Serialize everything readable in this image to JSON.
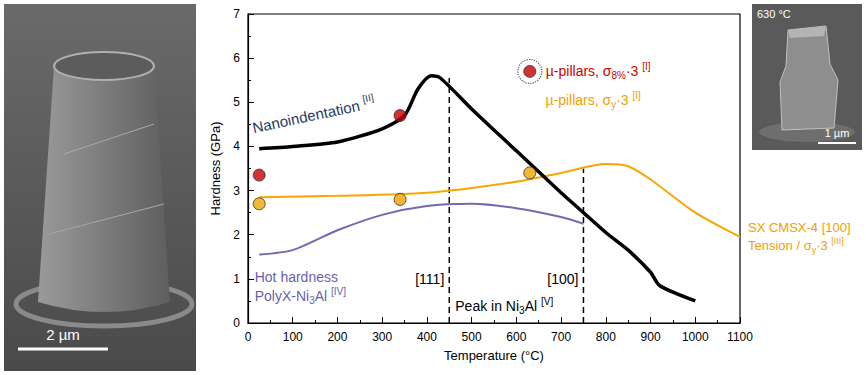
{
  "chart_data": {
    "type": "line",
    "x_label": "Temperature (°C)",
    "y_label": "Hardness (GPa)",
    "xlim": [
      0,
      1100
    ],
    "xticks": [
      0,
      100,
      200,
      300,
      400,
      500,
      600,
      700,
      800,
      900,
      1000,
      1100
    ],
    "ylim": [
      0,
      7
    ],
    "yticks": [
      0,
      1,
      2,
      3,
      4,
      5,
      6,
      7
    ],
    "grid": false,
    "legend": "none",
    "series": [
      {
        "type": "line",
        "line_style": "solid",
        "color": "#000000",
        "label": [
          [
            {
              "text": "Nanoindentation "
            },
            {
              "text": "[II]",
              "style": "sup"
            }
          ]
        ],
        "label_color": "#1f3a5f",
        "x": [
          25,
          100,
          200,
          300,
          350,
          380,
          410,
          430,
          500,
          600,
          700,
          750,
          800,
          850,
          900,
          920,
          1000
        ],
        "values": [
          3.95,
          4.0,
          4.1,
          4.4,
          4.7,
          5.3,
          5.6,
          5.55,
          4.85,
          3.9,
          2.95,
          2.5,
          2.05,
          1.65,
          1.15,
          0.85,
          0.5
        ]
      },
      {
        "type": "scatter",
        "marker": "circle",
        "color": "#c40000",
        "label": [
          [
            {
              "text": "µ-pillars, σ"
            },
            {
              "text": "8%",
              "style": "sub"
            },
            {
              "text": "·3 "
            },
            {
              "text": "[I]",
              "style": "sup"
            }
          ]
        ],
        "label_color": "#d00000",
        "x": [
          25,
          340,
          630
        ],
        "values": [
          3.35,
          4.7,
          5.7
        ]
      },
      {
        "type": "scatter",
        "marker": "circle",
        "color": "#f0a500",
        "label": [
          [
            {
              "text": "µ-pillars, σ"
            },
            {
              "text": "y",
              "style": "sub"
            },
            {
              "text": "·3 "
            },
            {
              "text": "[I]",
              "style": "sup"
            }
          ]
        ],
        "label_color": "#f0a000",
        "x": [
          25,
          340,
          630
        ],
        "values": [
          2.7,
          2.8,
          3.4
        ]
      },
      {
        "type": "line",
        "line_style": "solid",
        "color": "#f5a800",
        "label": [
          [
            {
              "text": "SX CMSX-4 [100]"
            }
          ],
          [
            {
              "text": "Tension / σ"
            },
            {
              "text": "y",
              "style": "sub"
            },
            {
              "text": "·3 "
            },
            {
              "text": "[III]",
              "style": "sup"
            }
          ]
        ],
        "label_color": "#f0a000",
        "x": [
          25,
          200,
          400,
          600,
          700,
          800,
          850,
          900,
          1000,
          1100
        ],
        "values": [
          2.85,
          2.88,
          2.95,
          3.2,
          3.4,
          3.6,
          3.55,
          3.25,
          2.5,
          1.95
        ]
      },
      {
        "type": "line",
        "line_style": "solid",
        "color": "#7468b0",
        "label": [
          [
            {
              "text": "Hot hardness"
            }
          ],
          [
            {
              "text": "PolyX-Ni"
            },
            {
              "text": "3",
              "style": "sub"
            },
            {
              "text": "Al "
            },
            {
              "text": "[IV]",
              "style": "sup"
            }
          ]
        ],
        "label_color": "#6a5fae",
        "x": [
          25,
          100,
          200,
          300,
          400,
          500,
          600,
          700,
          750
        ],
        "values": [
          1.55,
          1.65,
          2.1,
          2.45,
          2.65,
          2.7,
          2.6,
          2.4,
          2.25
        ]
      }
    ],
    "vlines": [
      {
        "x": 450,
        "ymax": 5.55,
        "label": "[111]"
      },
      {
        "x": 750,
        "ymax": 3.5,
        "label": "[100]"
      }
    ],
    "annotation": [
      {
        "text": "Peak in Ni"
      },
      {
        "text": "3",
        "style": "sub"
      },
      {
        "text": "Al "
      },
      {
        "text": "[V]",
        "style": "sup"
      }
    ]
  },
  "images": [
    {
      "scale_bar": "2 µm"
    },
    {
      "label": "630 °C",
      "scale_bar": "1 µm"
    }
  ]
}
